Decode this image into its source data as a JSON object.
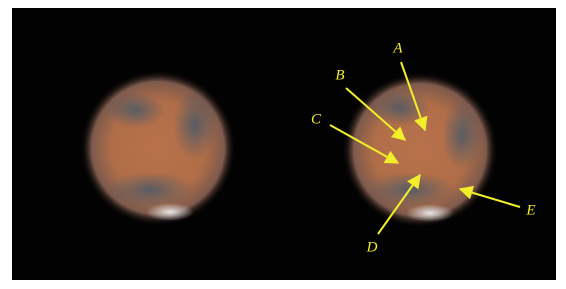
{
  "annotations": {
    "labels": [
      "A",
      "B",
      "C",
      "D",
      "E"
    ]
  }
}
